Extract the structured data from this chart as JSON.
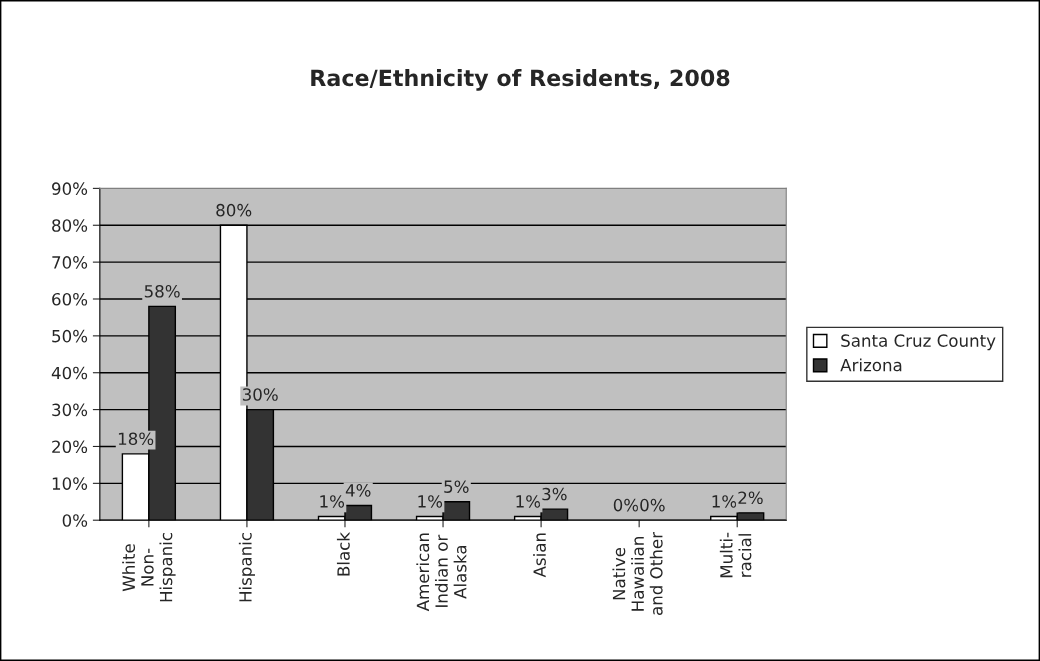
{
  "chart_data": {
    "type": "bar",
    "title": "Race/Ethnicity of Residents, 2008",
    "categories": [
      "White\nNon-\nHispanic",
      "Hispanic",
      "Black",
      "American\nIndian or\nAlaska",
      "Asian",
      "Native\nHawaiian\nand Other",
      "Multi-\nracial"
    ],
    "series": [
      {
        "name": "Santa Cruz County",
        "color": "#ffffff",
        "values": [
          18,
          80,
          1,
          1,
          1,
          0,
          1
        ],
        "value_labels": [
          "18%",
          "80%",
          "1%",
          "1%",
          "1%",
          "0%",
          "1%"
        ]
      },
      {
        "name": "Arizona",
        "color": "#333333",
        "values": [
          58,
          30,
          4,
          5,
          3,
          0,
          2
        ],
        "value_labels": [
          "58%",
          "30%",
          "4%",
          "5%",
          "3%",
          "0%",
          "2%"
        ]
      }
    ],
    "ylim": [
      0,
      90
    ],
    "yticks": [
      {
        "value": 0,
        "label": "0%"
      },
      {
        "value": 10,
        "label": "10%"
      },
      {
        "value": 20,
        "label": "20%"
      },
      {
        "value": 30,
        "label": "30%"
      },
      {
        "value": 40,
        "label": "40%"
      },
      {
        "value": 50,
        "label": "50%"
      },
      {
        "value": 60,
        "label": "60%"
      },
      {
        "value": 70,
        "label": "70%"
      },
      {
        "value": 80,
        "label": "80%"
      },
      {
        "value": 90,
        "label": "90%"
      }
    ],
    "grid": "y",
    "legend": "right"
  }
}
